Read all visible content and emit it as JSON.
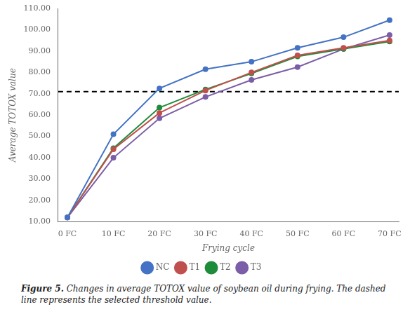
{
  "chart_data": {
    "type": "line",
    "xlabel": "Frying cycle",
    "ylabel": "Average TOTOX value",
    "x": [
      0,
      10,
      20,
      30,
      40,
      50,
      60,
      70
    ],
    "xlim": [
      -2,
      72
    ],
    "xticks": [
      {
        "value": 0,
        "label": "0 FC"
      },
      {
        "value": 10,
        "label": "10 FC"
      },
      {
        "value": 20,
        "label": "20 FC"
      },
      {
        "value": 30,
        "label": "30 FC"
      },
      {
        "value": 40,
        "label": "40 FC"
      },
      {
        "value": 50,
        "label": "50 FC"
      },
      {
        "value": 60,
        "label": "60 FC"
      },
      {
        "value": 70,
        "label": "70 FC"
      }
    ],
    "ylim": [
      10.0,
      110.0
    ],
    "yticks": [
      {
        "value": 10.0,
        "label": "10.00"
      },
      {
        "value": 20.0,
        "label": "20.00"
      },
      {
        "value": 30.0,
        "label": "30.00"
      },
      {
        "value": 40.0,
        "label": "40.00"
      },
      {
        "value": 50.0,
        "label": "50.00"
      },
      {
        "value": 60.0,
        "label": "60.00"
      },
      {
        "value": 70.0,
        "label": "70.00"
      },
      {
        "value": 80.0,
        "label": "80.00"
      },
      {
        "value": 90.0,
        "label": "90.00"
      },
      {
        "value": 100.0,
        "label": "100.00"
      },
      {
        "value": 110.0,
        "label": "110.00"
      }
    ],
    "series": [
      {
        "name": "NC",
        "color": "#4472C4",
        "marker": "o",
        "values": [
          12.0,
          51.0,
          72.5,
          81.5,
          85.0,
          91.5,
          96.5,
          104.5
        ]
      },
      {
        "name": "T1",
        "color": "#C0504D",
        "marker": "o",
        "values": [
          12.0,
          44.0,
          61.0,
          71.5,
          80.0,
          88.0,
          91.5,
          95.0
        ]
      },
      {
        "name": "T2",
        "color": "#1F8C3C",
        "marker": "o",
        "values": [
          12.0,
          44.5,
          63.5,
          72.0,
          79.5,
          87.5,
          91.0,
          94.5
        ]
      },
      {
        "name": "T3",
        "color": "#7B5EA7",
        "marker": "o",
        "values": [
          12.0,
          40.0,
          58.5,
          68.5,
          76.5,
          82.5,
          91.0,
          97.5
        ]
      }
    ],
    "threshold": 71.0,
    "grid": false,
    "legend": "bottom",
    "annotations": [
      "Figure 5.",
      "Changes in average TOTOX value of soybean oil during frying. The dashed line represents the selected threshold value."
    ]
  }
}
